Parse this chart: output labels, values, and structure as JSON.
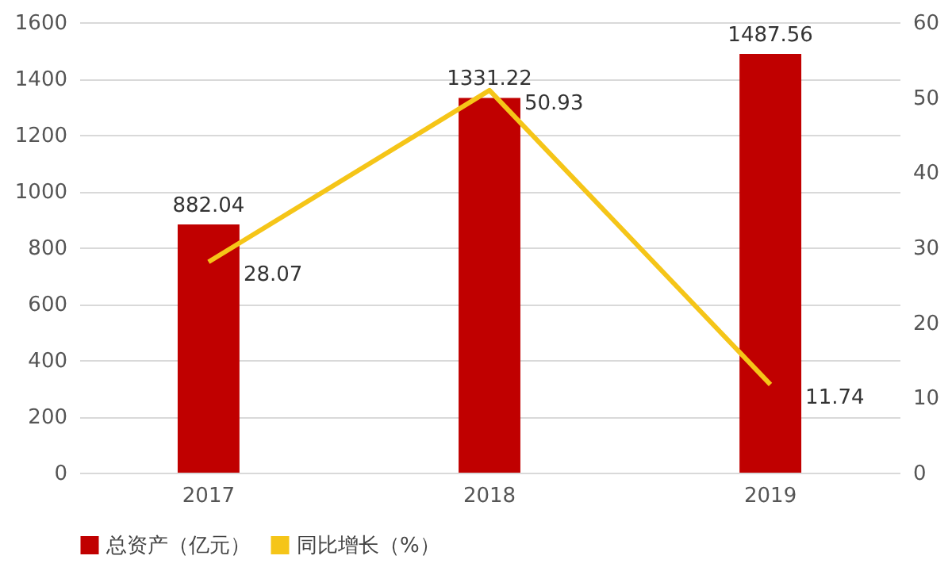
{
  "chart_data": {
    "type": "bar",
    "categories": [
      "2017",
      "2018",
      "2019"
    ],
    "series": [
      {
        "name": "总资产（亿元）",
        "color": "#c00000",
        "values": [
          882.04,
          1331.22,
          1487.56
        ]
      },
      {
        "name": "同比增长（%）",
        "type": "line",
        "axis": "y2",
        "color": "#f5c518",
        "values": [
          28.07,
          50.93,
          11.74
        ]
      }
    ],
    "ylim": [
      0,
      1600
    ],
    "yticks": [
      0,
      200,
      400,
      600,
      800,
      1000,
      1200,
      1400,
      1600
    ],
    "y2lim": [
      0,
      60
    ],
    "y2ticks": [
      0,
      10,
      20,
      30,
      40,
      50,
      60
    ],
    "grid": "y",
    "legend": "bottom",
    "data_labels": true,
    "marker": "none",
    "line_style": "solid"
  }
}
